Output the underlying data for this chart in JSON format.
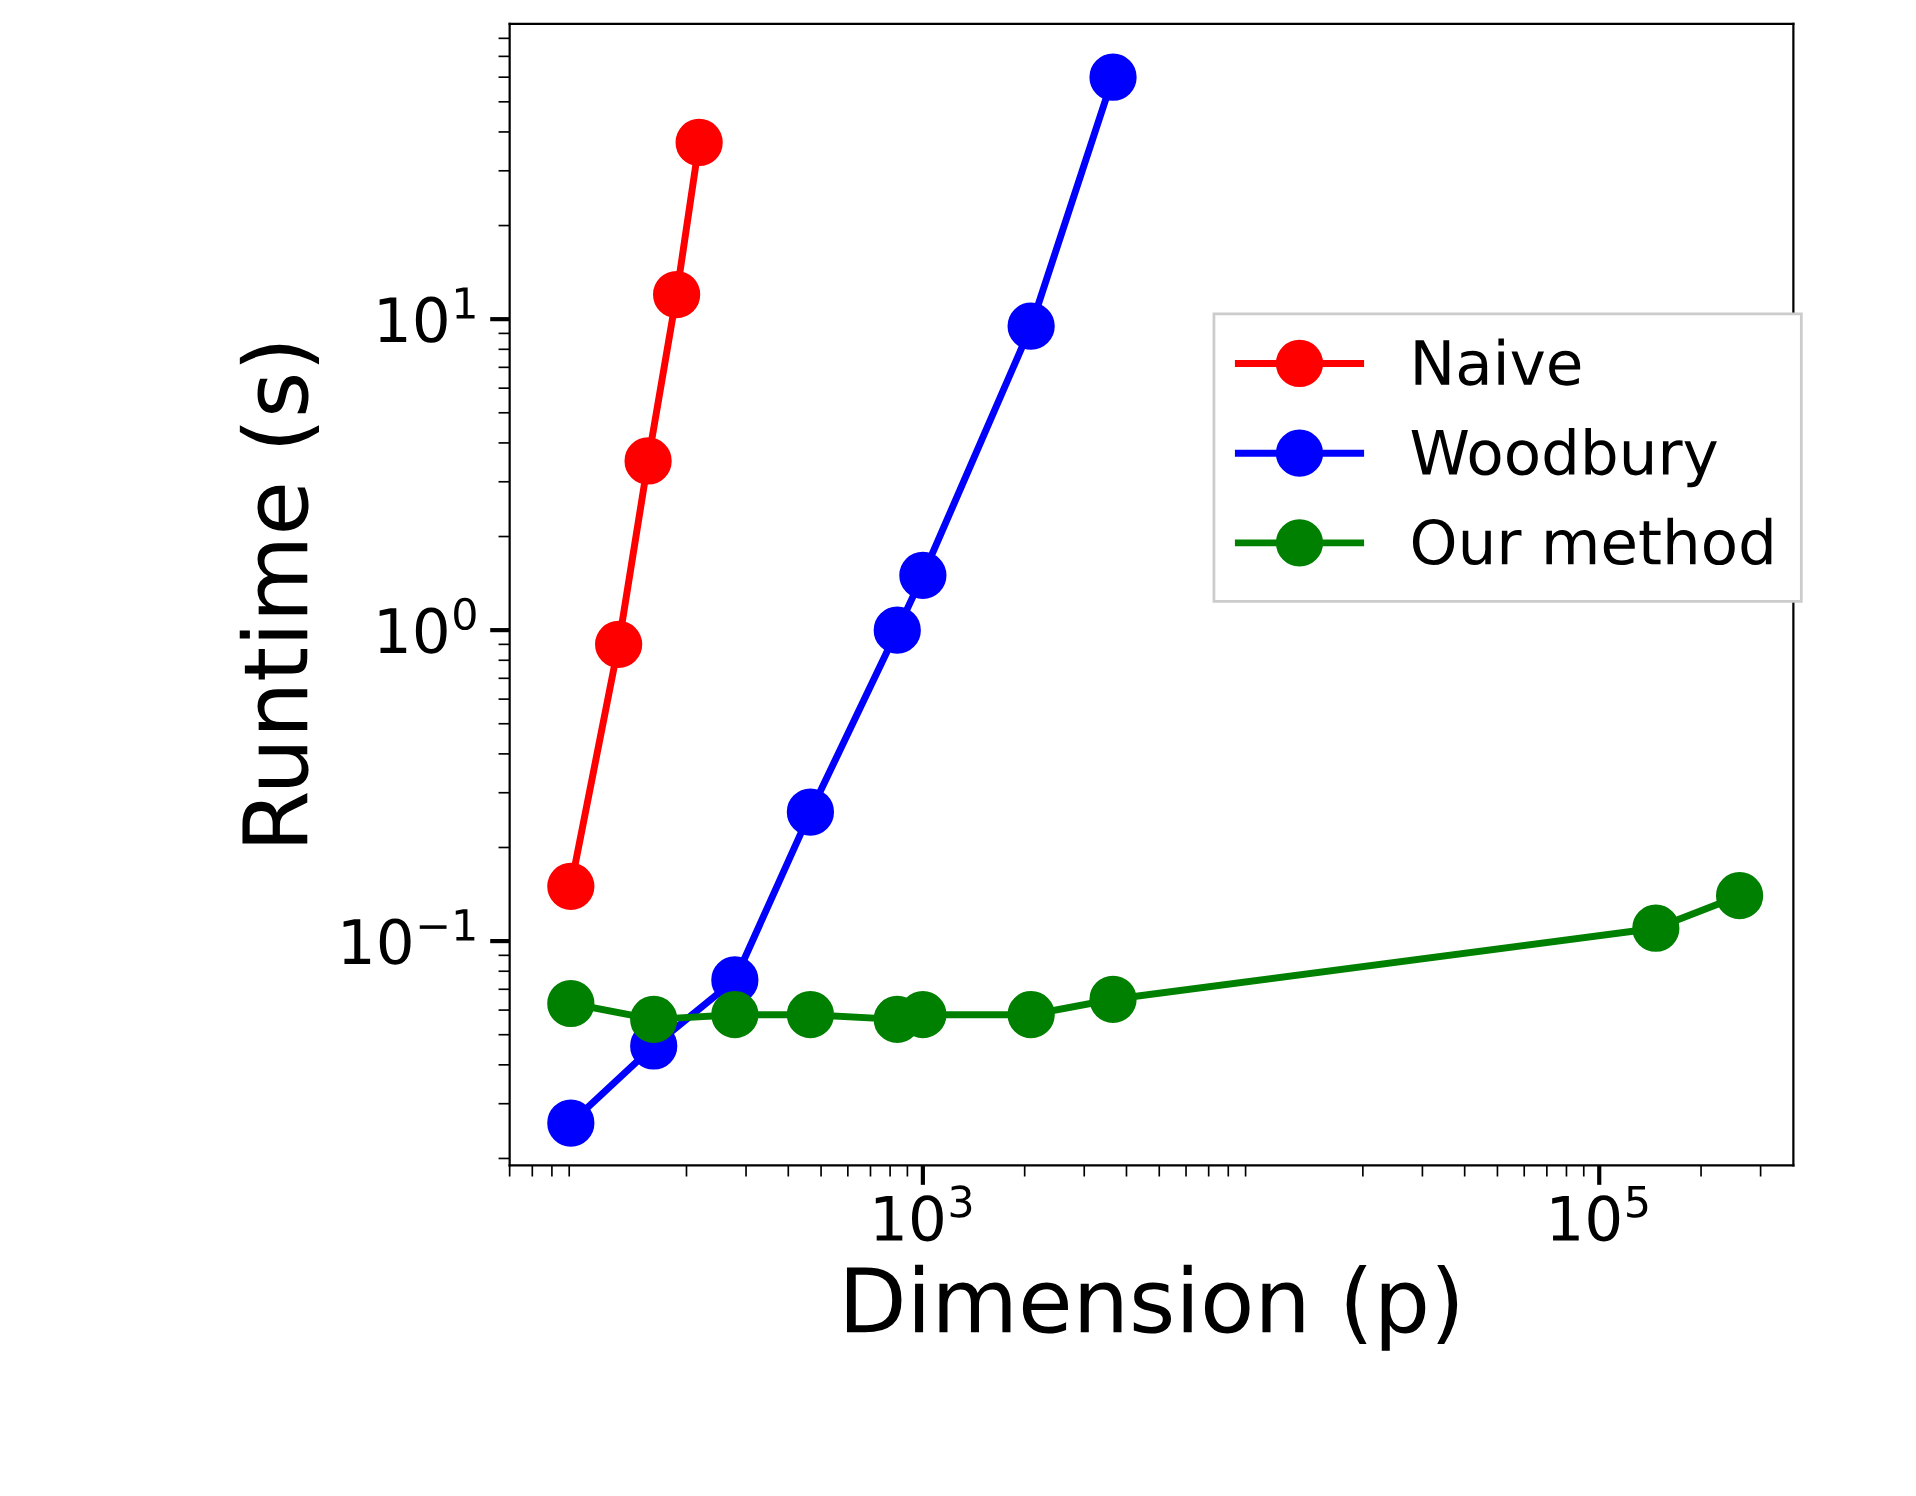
{
  "chart_data": {
    "type": "line",
    "xlabel": "Dimension (p)",
    "ylabel": "Runtime (s)",
    "log": "xy",
    "marker": "circle",
    "line_style": "solid",
    "legend": "right",
    "grid": false,
    "xlim": [
      60,
      375000
    ],
    "ylim": [
      0.019,
      89
    ],
    "xticks": [
      {
        "value": 1000,
        "label": "10$^{3}$"
      },
      {
        "value": 100000,
        "label": "10$^{5}$"
      }
    ],
    "yticks": [
      {
        "value": 0.1,
        "label": "10$^{−1}$"
      },
      {
        "value": 1,
        "label": "10$^{0}$"
      },
      {
        "value": 10,
        "label": "10$^{1}$"
      }
    ],
    "series": [
      {
        "name": "Naive",
        "color": "#ff0000",
        "x": [
          91,
          126,
          154,
          187,
          218
        ],
        "values": [
          0.15,
          0.9,
          3.5,
          12,
          37
        ]
      },
      {
        "name": "Woodbury",
        "color": "#0000ff",
        "x": [
          91,
          160,
          278,
          465,
          840,
          1000,
          2090,
          3650
        ],
        "values": [
          0.026,
          0.046,
          0.075,
          0.26,
          1.0,
          1.5,
          9.5,
          60
        ]
      },
      {
        "name": "Our method",
        "color": "#008000",
        "x": [
          91,
          160,
          278,
          465,
          840,
          1000,
          2090,
          3650,
          147000,
          260000
        ],
        "values": [
          0.063,
          0.056,
          0.058,
          0.058,
          0.056,
          0.058,
          0.058,
          0.065,
          0.11,
          0.14
        ]
      }
    ]
  }
}
